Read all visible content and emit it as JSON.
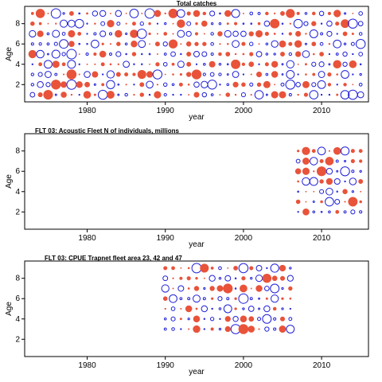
{
  "colors": {
    "positive": "#e8533a",
    "negative": "#1f1fd8",
    "axis": "#000000"
  },
  "chart_data": [
    {
      "type": "scatter",
      "subtype": "bubble-residuals",
      "title": "Total catches",
      "xlabel": "year",
      "ylabel": "Age",
      "xlim": [
        1972,
        2016
      ],
      "ylim": [
        0.3,
        9.7
      ],
      "xticks": [
        1980,
        1990,
        2000,
        2010
      ],
      "yticks": [
        2,
        4,
        6,
        8
      ],
      "years": [
        1973,
        2015
      ],
      "ages": [
        1,
        9
      ]
    },
    {
      "type": "scatter",
      "subtype": "bubble-residuals",
      "title": "FLT 03: Acoustic Fleet   N of individuals, millions",
      "xlabel": "year",
      "ylabel": "Age",
      "xlim": [
        1972,
        2016
      ],
      "ylim": [
        0.3,
        9.7
      ],
      "xticks": [
        1980,
        1990,
        2000,
        2010
      ],
      "yticks": [
        2,
        4,
        6,
        8
      ],
      "years": [
        2007,
        2015
      ],
      "ages": [
        2,
        8
      ]
    },
    {
      "type": "scatter",
      "subtype": "bubble-residuals",
      "title": "FLT 03: CPUE Trapnet fleet area 23, 42 and 47",
      "xlabel": "year",
      "ylabel": "Age",
      "xlim": [
        1972,
        2016
      ],
      "ylim": [
        0.3,
        9.7
      ],
      "xticks": [
        1980,
        1990,
        2000,
        2010
      ],
      "yticks": [
        2,
        4,
        6,
        8
      ],
      "years": [
        1990,
        2006
      ],
      "ages": [
        3,
        9
      ]
    }
  ]
}
